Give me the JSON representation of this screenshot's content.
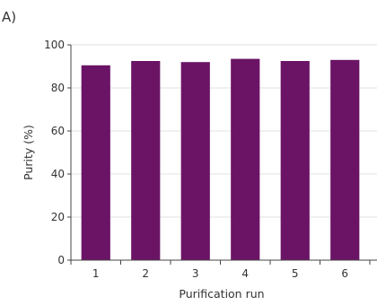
{
  "panel_label": "A)",
  "colors": {
    "bar": "#6b1466",
    "axis": "#444444",
    "grid": "#e2e2e2",
    "text": "#333333"
  },
  "chart_data": {
    "type": "bar",
    "title": "",
    "xlabel": "Purification run",
    "ylabel": "Purity (%)",
    "categories": [
      "1",
      "2",
      "3",
      "4",
      "5",
      "6"
    ],
    "values": [
      90.5,
      92.5,
      92.0,
      93.5,
      92.5,
      93.0
    ],
    "ylim": [
      0,
      100
    ],
    "yticks": [
      0,
      20,
      40,
      60,
      80,
      100
    ],
    "grid": "horizontal",
    "legend": "none"
  }
}
